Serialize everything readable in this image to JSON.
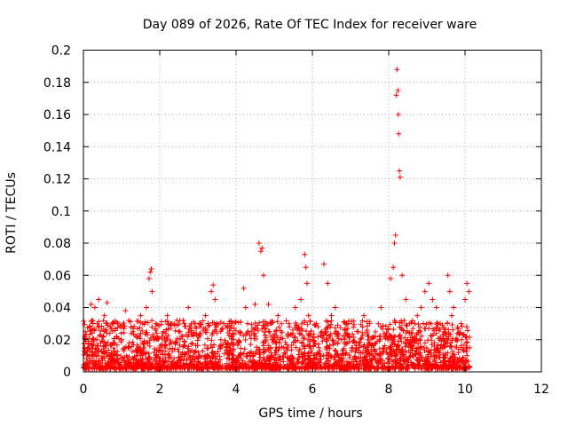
{
  "chart_data": {
    "type": "scatter",
    "title": "Day 089 of 2026, Rate Of TEC Index for receiver ware",
    "xlabel": "GPS time / hours",
    "ylabel": "ROTI / TECUs",
    "xlim": [
      0,
      12
    ],
    "ylim": [
      0,
      0.2
    ],
    "xticks": [
      0,
      2,
      4,
      6,
      8,
      10,
      12
    ],
    "xtick_labels": [
      "0",
      "2",
      "4",
      "6",
      "8",
      "10",
      "12"
    ],
    "yticks": [
      0,
      0.02,
      0.04,
      0.06,
      0.08,
      0.1,
      0.12,
      0.14,
      0.16,
      0.18,
      0.2
    ],
    "ytick_labels": [
      "0",
      "0.02",
      "0.04",
      "0.06",
      "0.08",
      "0.1",
      "0.12",
      "0.14",
      "0.16",
      "0.18",
      "0.2"
    ],
    "grid": true,
    "marker": "+",
    "marker_color": "#ff0000",
    "series": [
      {
        "name": "ROTI",
        "x": [
          0.05,
          0.12,
          0.2,
          0.25,
          0.3,
          0.35,
          0.4,
          0.45,
          0.55,
          0.62,
          0.7,
          0.8,
          0.9,
          1.0,
          1.1,
          1.2,
          1.3,
          1.4,
          1.5,
          1.55,
          1.65,
          1.72,
          1.75,
          1.78,
          1.8,
          1.85,
          1.9,
          2.0,
          2.1,
          2.2,
          2.3,
          2.45,
          2.6,
          2.75,
          2.9,
          3.05,
          3.2,
          3.35,
          3.4,
          3.45,
          3.5,
          3.6,
          3.75,
          3.9,
          4.05,
          4.2,
          4.25,
          4.3,
          4.4,
          4.5,
          4.6,
          4.65,
          4.68,
          4.72,
          4.8,
          4.85,
          4.95,
          5.1,
          5.25,
          5.4,
          5.55,
          5.7,
          5.8,
          5.83,
          5.86,
          5.9,
          6.0,
          6.1,
          6.25,
          6.3,
          6.4,
          6.5,
          6.6,
          6.75,
          6.9,
          7.05,
          7.2,
          7.35,
          7.5,
          7.65,
          7.8,
          7.95,
          8.05,
          8.12,
          8.15,
          8.18,
          8.2,
          8.22,
          8.24,
          8.25,
          8.26,
          8.28,
          8.3,
          8.35,
          8.45,
          8.55,
          8.65,
          8.75,
          8.85,
          8.95,
          9.05,
          9.15,
          9.25,
          9.35,
          9.45,
          9.55,
          9.6,
          9.65,
          9.7,
          9.8,
          9.9,
          10.0,
          10.05,
          10.1,
          10.12
        ],
        "y": [
          0.025,
          0.015,
          0.042,
          0.03,
          0.04,
          0.02,
          0.045,
          0.018,
          0.035,
          0.043,
          0.028,
          0.012,
          0.03,
          0.02,
          0.038,
          0.015,
          0.025,
          0.022,
          0.035,
          0.03,
          0.04,
          0.058,
          0.062,
          0.064,
          0.05,
          0.02,
          0.03,
          0.015,
          0.025,
          0.035,
          0.018,
          0.032,
          0.022,
          0.04,
          0.012,
          0.028,
          0.035,
          0.05,
          0.054,
          0.045,
          0.03,
          0.02,
          0.015,
          0.022,
          0.018,
          0.052,
          0.04,
          0.03,
          0.025,
          0.042,
          0.08,
          0.075,
          0.077,
          0.06,
          0.03,
          0.042,
          0.02,
          0.035,
          0.015,
          0.028,
          0.04,
          0.045,
          0.073,
          0.065,
          0.055,
          0.035,
          0.02,
          0.03,
          0.025,
          0.067,
          0.055,
          0.035,
          0.04,
          0.02,
          0.03,
          0.015,
          0.025,
          0.035,
          0.03,
          0.022,
          0.04,
          0.012,
          0.058,
          0.065,
          0.08,
          0.085,
          0.172,
          0.188,
          0.175,
          0.16,
          0.148,
          0.125,
          0.121,
          0.06,
          0.045,
          0.03,
          0.02,
          0.035,
          0.04,
          0.05,
          0.055,
          0.045,
          0.04,
          0.03,
          0.025,
          0.06,
          0.05,
          0.035,
          0.04,
          0.02,
          0.03,
          0.045,
          0.055,
          0.05,
          0.015
        ]
      }
    ]
  }
}
